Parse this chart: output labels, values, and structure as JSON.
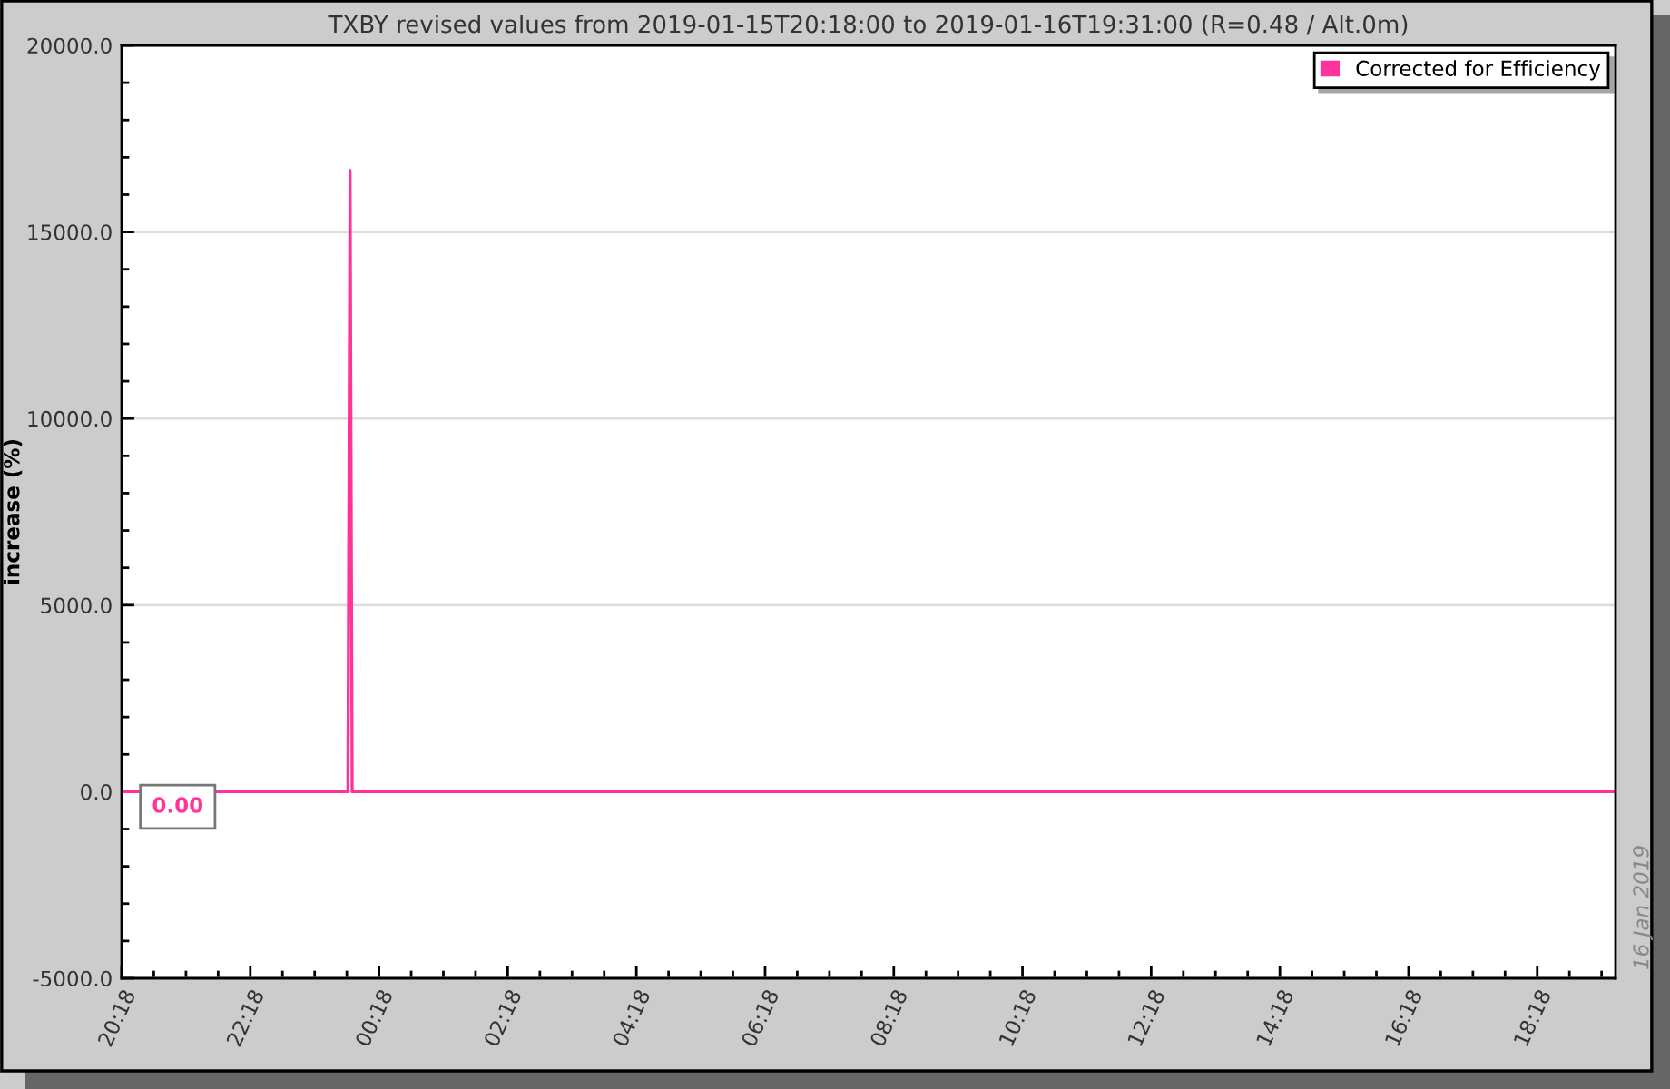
{
  "chart_data": {
    "type": "line",
    "title": "TXBY revised values from 2019-01-15T20:18:00 to 2019-01-16T19:31:00 (R=0.48 / Alt.0m)",
    "ylabel": "increase (%)",
    "series": [
      {
        "name": "Corrected for Efficiency",
        "color": "#ff3399",
        "x": [
          "2019-01-15T20:18",
          "2019-01-15T23:49",
          "2019-01-15T23:50",
          "2019-01-15T23:51",
          "2019-01-15T23:52",
          "2019-01-15T23:53",
          "2019-01-16T19:31"
        ],
        "values": [
          0,
          0,
          8320,
          16650,
          8320,
          0,
          0
        ]
      }
    ],
    "xlim": [
      "2019-01-15T20:18",
      "2019-01-16T19:31"
    ],
    "xticks": [
      {
        "value": "2019-01-15T20:18",
        "label": "20:18"
      },
      {
        "value": "2019-01-15T20:48",
        "label": null
      },
      {
        "value": "2019-01-15T21:18",
        "label": null
      },
      {
        "value": "2019-01-15T21:48",
        "label": null
      },
      {
        "value": "2019-01-15T22:18",
        "label": "22:18"
      },
      {
        "value": "2019-01-15T22:48",
        "label": null
      },
      {
        "value": "2019-01-15T23:18",
        "label": null
      },
      {
        "value": "2019-01-15T23:48",
        "label": null
      },
      {
        "value": "2019-01-16T00:18",
        "label": "00:18"
      },
      {
        "value": "2019-01-16T00:48",
        "label": null
      },
      {
        "value": "2019-01-16T01:18",
        "label": null
      },
      {
        "value": "2019-01-16T01:48",
        "label": null
      },
      {
        "value": "2019-01-16T02:18",
        "label": "02:18"
      },
      {
        "value": "2019-01-16T02:48",
        "label": null
      },
      {
        "value": "2019-01-16T03:18",
        "label": null
      },
      {
        "value": "2019-01-16T03:48",
        "label": null
      },
      {
        "value": "2019-01-16T04:18",
        "label": "04:18"
      },
      {
        "value": "2019-01-16T04:48",
        "label": null
      },
      {
        "value": "2019-01-16T05:18",
        "label": null
      },
      {
        "value": "2019-01-16T05:48",
        "label": null
      },
      {
        "value": "2019-01-16T06:18",
        "label": "06:18"
      },
      {
        "value": "2019-01-16T06:48",
        "label": null
      },
      {
        "value": "2019-01-16T07:18",
        "label": null
      },
      {
        "value": "2019-01-16T07:48",
        "label": null
      },
      {
        "value": "2019-01-16T08:18",
        "label": "08:18"
      },
      {
        "value": "2019-01-16T08:48",
        "label": null
      },
      {
        "value": "2019-01-16T09:18",
        "label": null
      },
      {
        "value": "2019-01-16T09:48",
        "label": null
      },
      {
        "value": "2019-01-16T10:18",
        "label": "10:18"
      },
      {
        "value": "2019-01-16T10:48",
        "label": null
      },
      {
        "value": "2019-01-16T11:18",
        "label": null
      },
      {
        "value": "2019-01-16T11:48",
        "label": null
      },
      {
        "value": "2019-01-16T12:18",
        "label": "12:18"
      },
      {
        "value": "2019-01-16T12:48",
        "label": null
      },
      {
        "value": "2019-01-16T13:18",
        "label": null
      },
      {
        "value": "2019-01-16T13:48",
        "label": null
      },
      {
        "value": "2019-01-16T14:18",
        "label": "14:18"
      },
      {
        "value": "2019-01-16T14:48",
        "label": null
      },
      {
        "value": "2019-01-16T15:18",
        "label": null
      },
      {
        "value": "2019-01-16T15:48",
        "label": null
      },
      {
        "value": "2019-01-16T16:18",
        "label": "16:18"
      },
      {
        "value": "2019-01-16T16:48",
        "label": null
      },
      {
        "value": "2019-01-16T17:18",
        "label": null
      },
      {
        "value": "2019-01-16T17:48",
        "label": null
      },
      {
        "value": "2019-01-16T18:18",
        "label": "18:18"
      },
      {
        "value": "2019-01-16T18:48",
        "label": null
      },
      {
        "value": "2019-01-16T19:18",
        "label": null
      }
    ],
    "ylim": [
      -5000,
      20000
    ],
    "yticks": [
      {
        "value": -5000,
        "label": "-5000.0"
      },
      {
        "value": -4000,
        "label": null
      },
      {
        "value": -3000,
        "label": null
      },
      {
        "value": -2000,
        "label": null
      },
      {
        "value": -1000,
        "label": null
      },
      {
        "value": 0,
        "label": "0.0"
      },
      {
        "value": 1000,
        "label": null
      },
      {
        "value": 2000,
        "label": null
      },
      {
        "value": 3000,
        "label": null
      },
      {
        "value": 4000,
        "label": null
      },
      {
        "value": 5000,
        "label": "5000.0"
      },
      {
        "value": 6000,
        "label": null
      },
      {
        "value": 7000,
        "label": null
      },
      {
        "value": 8000,
        "label": null
      },
      {
        "value": 9000,
        "label": null
      },
      {
        "value": 10000,
        "label": "10000.0"
      },
      {
        "value": 11000,
        "label": null
      },
      {
        "value": 12000,
        "label": null
      },
      {
        "value": 13000,
        "label": null
      },
      {
        "value": 14000,
        "label": null
      },
      {
        "value": 15000,
        "label": "15000.0"
      },
      {
        "value": 16000,
        "label": null
      },
      {
        "value": 17000,
        "label": null
      },
      {
        "value": 18000,
        "label": null
      },
      {
        "value": 19000,
        "label": null
      },
      {
        "value": 20000,
        "label": "20000.0"
      }
    ],
    "grid": "y",
    "legend": "top right",
    "annotations": [
      {
        "text": "0.00",
        "x": "2019-01-15T20:18",
        "y": 0
      },
      "16 Jan 2019"
    ]
  }
}
